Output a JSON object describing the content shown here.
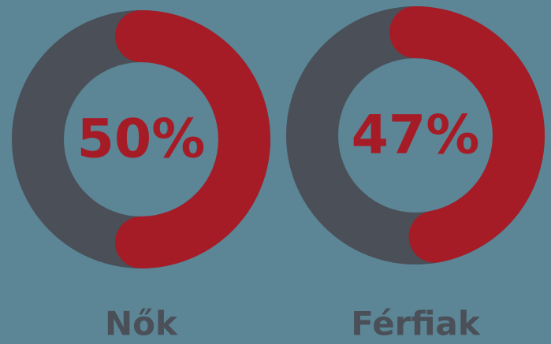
{
  "chart_data": {
    "type": "donut",
    "categories": [
      "Nők",
      "Férfiak"
    ],
    "values": [
      50,
      47
    ],
    "value_labels": [
      "50%",
      "47%"
    ],
    "color": "#a51c26",
    "track_color": "#4a4f58"
  }
}
